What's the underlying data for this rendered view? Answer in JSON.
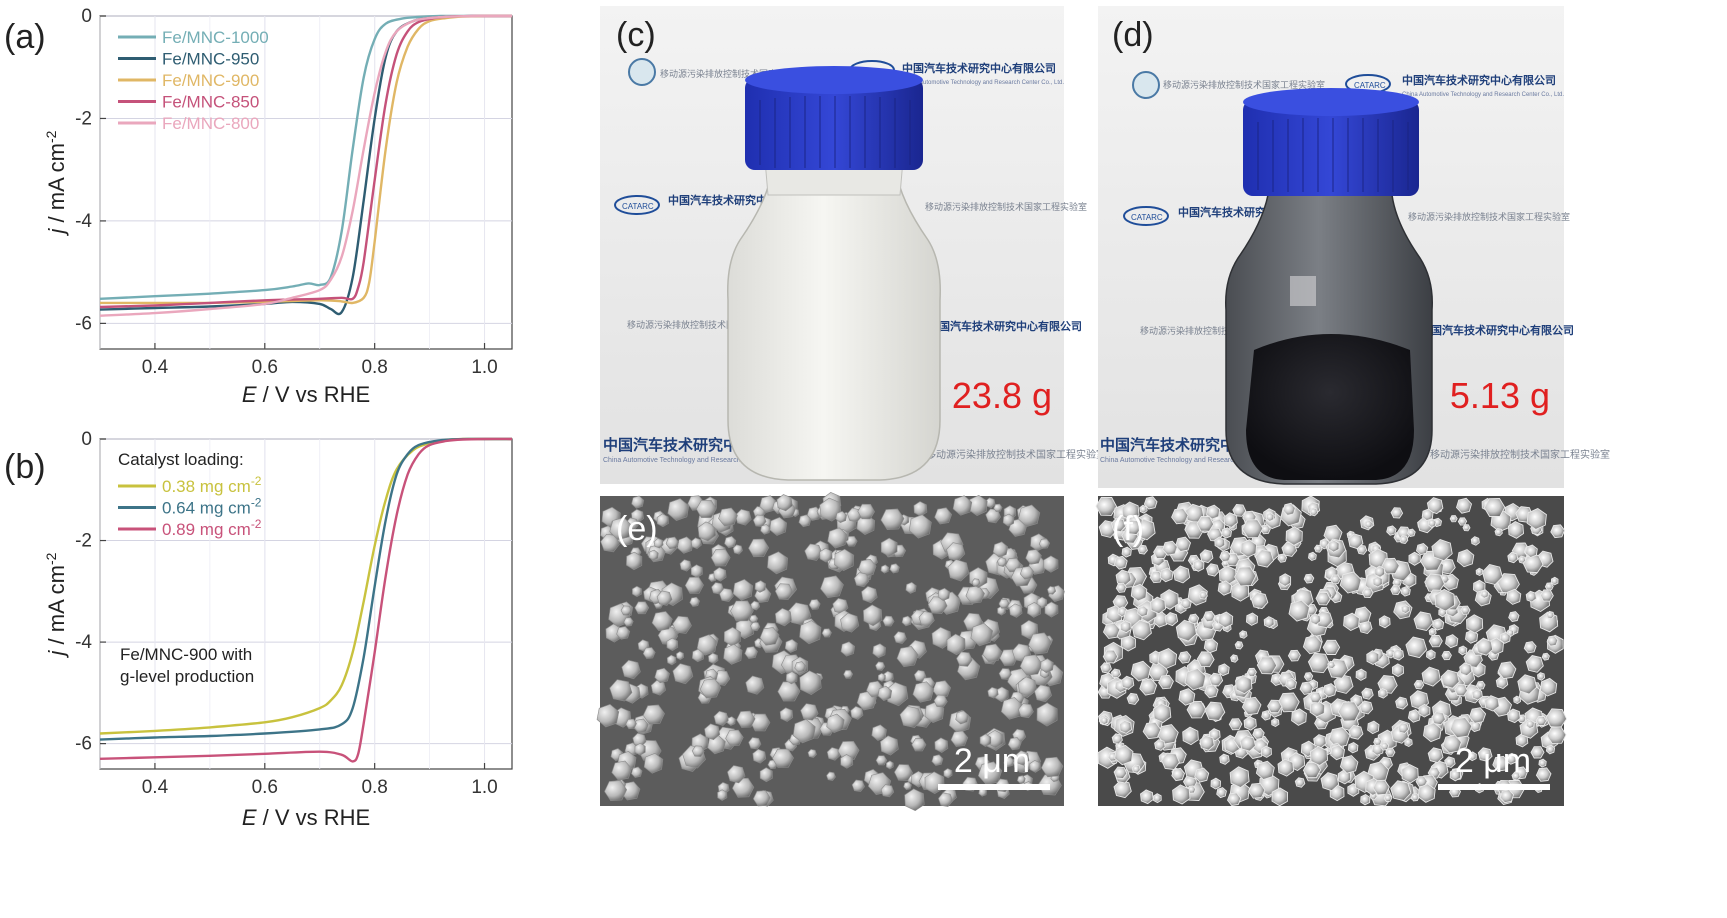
{
  "panels": {
    "a": "(a)",
    "b": "(b)",
    "c": "(c)",
    "d": "(d)",
    "e": "(e)",
    "f": "(f)"
  },
  "photos": {
    "c_mass": "23.8 g",
    "d_mass": "5.13 g",
    "e_scale": "2 μm",
    "f_scale": "2 μm",
    "logo_text": "CATARC",
    "banner_cn": "中国汽车技术研究中心有限公司",
    "banner_en": "China Automotive Technology and Research Center Co., Ltd.",
    "lab_cn": "移动源污染排放控制技术国家工程实验室"
  },
  "chart_data": [
    {
      "type": "line",
      "panel": "a",
      "xlabel_italic": "E",
      "xlabel_rest": " / V vs RHE",
      "ylabel_italic": "j",
      "ylabel_rest": " / mA cm",
      "ylabel_sup": "-2",
      "xlim": [
        0.3,
        1.05
      ],
      "ylim": [
        -6.5,
        0
      ],
      "xticks": [
        0.4,
        0.6,
        0.8,
        1.0
      ],
      "xtick_labels": [
        "0.4",
        "0.6",
        "0.8",
        "1.0"
      ],
      "yticks": [
        0,
        -2,
        -4,
        -6
      ],
      "ytick_labels": [
        "0",
        "-2",
        "-4",
        "-6"
      ],
      "grid": true,
      "legend_position": "top-left",
      "series": [
        {
          "name": "Fe/MNC-1000",
          "color": "#74aeb5",
          "x": [
            0.3,
            0.4,
            0.5,
            0.6,
            0.65,
            0.68,
            0.7,
            0.72,
            0.74,
            0.76,
            0.78,
            0.8,
            0.82,
            0.85,
            0.88,
            0.92,
            0.96,
            1.0,
            1.05
          ],
          "y": [
            -5.52,
            -5.47,
            -5.42,
            -5.35,
            -5.28,
            -5.22,
            -5.25,
            -5.1,
            -4.2,
            -2.6,
            -1.2,
            -0.45,
            -0.15,
            -0.05,
            -0.02,
            0,
            0,
            0,
            0
          ]
        },
        {
          "name": "Fe/MNC-950",
          "color": "#2f5d72",
          "x": [
            0.3,
            0.4,
            0.5,
            0.6,
            0.65,
            0.7,
            0.72,
            0.74,
            0.76,
            0.78,
            0.8,
            0.82,
            0.84,
            0.87,
            0.9,
            0.94,
            0.98,
            1.0,
            1.05
          ],
          "y": [
            -5.73,
            -5.7,
            -5.67,
            -5.62,
            -5.58,
            -5.62,
            -5.72,
            -5.78,
            -5.1,
            -3.6,
            -2.0,
            -0.8,
            -0.3,
            -0.1,
            -0.04,
            -0.01,
            0,
            0,
            0
          ]
        },
        {
          "name": "Fe/MNC-900",
          "color": "#e0b765",
          "x": [
            0.3,
            0.4,
            0.5,
            0.6,
            0.7,
            0.74,
            0.76,
            0.78,
            0.79,
            0.8,
            0.82,
            0.84,
            0.86,
            0.88,
            0.9,
            0.93,
            0.96,
            1.0,
            1.05
          ],
          "y": [
            -5.6,
            -5.6,
            -5.6,
            -5.58,
            -5.55,
            -5.57,
            -5.6,
            -5.5,
            -5.2,
            -4.4,
            -2.6,
            -1.3,
            -0.6,
            -0.25,
            -0.1,
            -0.04,
            -0.01,
            0,
            0
          ]
        },
        {
          "name": "Fe/MNC-850",
          "color": "#c5527a",
          "x": [
            0.3,
            0.4,
            0.5,
            0.6,
            0.7,
            0.74,
            0.76,
            0.77,
            0.78,
            0.8,
            0.82,
            0.84,
            0.86,
            0.88,
            0.91,
            0.94,
            0.98,
            1.0,
            1.05
          ],
          "y": [
            -5.68,
            -5.65,
            -5.6,
            -5.55,
            -5.52,
            -5.5,
            -5.52,
            -5.3,
            -4.8,
            -3.2,
            -1.7,
            -0.75,
            -0.3,
            -0.12,
            -0.04,
            -0.01,
            0,
            0,
            0
          ]
        },
        {
          "name": "Fe/MNC-800",
          "color": "#eaa7bd",
          "x": [
            0.3,
            0.4,
            0.5,
            0.6,
            0.65,
            0.7,
            0.72,
            0.74,
            0.76,
            0.78,
            0.8,
            0.82,
            0.84,
            0.87,
            0.9,
            0.94,
            0.98,
            1.0,
            1.05
          ],
          "y": [
            -5.85,
            -5.8,
            -5.72,
            -5.62,
            -5.5,
            -5.35,
            -5.15,
            -4.7,
            -3.8,
            -2.6,
            -1.5,
            -0.7,
            -0.3,
            -0.1,
            -0.04,
            -0.01,
            0,
            0,
            0
          ]
        }
      ]
    },
    {
      "type": "line",
      "panel": "b",
      "xlabel_italic": "E",
      "xlabel_rest": " / V vs RHE",
      "ylabel_italic": "j",
      "ylabel_rest": " / mA cm",
      "ylabel_sup": "-2",
      "xlim": [
        0.3,
        1.05
      ],
      "ylim": [
        -6.5,
        0
      ],
      "xticks": [
        0.4,
        0.6,
        0.8,
        1.0
      ],
      "xtick_labels": [
        "0.4",
        "0.6",
        "0.8",
        "1.0"
      ],
      "yticks": [
        0,
        -2,
        -4,
        -6
      ],
      "ytick_labels": [
        "0",
        "-2",
        "-4",
        "-6"
      ],
      "grid": true,
      "legend_position": "top-left",
      "legend_title": "Catalyst loading:",
      "annotation_line1": "Fe/MNC-900 with",
      "annotation_line2": "g-level production",
      "series": [
        {
          "name": "0.38 mg cm",
          "name_sup": "-2",
          "color": "#c8c23e",
          "x": [
            0.3,
            0.4,
            0.5,
            0.6,
            0.65,
            0.7,
            0.72,
            0.74,
            0.76,
            0.78,
            0.8,
            0.82,
            0.84,
            0.87,
            0.9,
            0.93,
            0.96,
            1.0,
            1.05
          ],
          "y": [
            -5.8,
            -5.75,
            -5.68,
            -5.58,
            -5.48,
            -5.3,
            -5.15,
            -4.85,
            -4.2,
            -3.2,
            -2.1,
            -1.2,
            -0.6,
            -0.22,
            -0.08,
            -0.02,
            0,
            0,
            0
          ]
        },
        {
          "name": "0.64 mg cm",
          "name_sup": "-2",
          "color": "#3d7488",
          "x": [
            0.3,
            0.4,
            0.5,
            0.6,
            0.7,
            0.74,
            0.76,
            0.78,
            0.8,
            0.82,
            0.84,
            0.86,
            0.88,
            0.91,
            0.94,
            0.97,
            1.0,
            1.05
          ],
          "y": [
            -5.92,
            -5.88,
            -5.85,
            -5.8,
            -5.72,
            -5.62,
            -5.3,
            -4.3,
            -2.9,
            -1.6,
            -0.7,
            -0.3,
            -0.12,
            -0.04,
            -0.01,
            0,
            0,
            0
          ]
        },
        {
          "name": "0.89 mg cm",
          "name_sup": "-2",
          "color": "#c8527a",
          "x": [
            0.3,
            0.4,
            0.5,
            0.6,
            0.7,
            0.74,
            0.76,
            0.77,
            0.78,
            0.8,
            0.82,
            0.84,
            0.86,
            0.88,
            0.9,
            0.93,
            0.96,
            1.0,
            1.05
          ],
          "y": [
            -6.3,
            -6.27,
            -6.24,
            -6.2,
            -6.16,
            -6.22,
            -6.35,
            -6.2,
            -5.6,
            -4.2,
            -2.7,
            -1.5,
            -0.7,
            -0.3,
            -0.12,
            -0.04,
            -0.01,
            0,
            0
          ]
        }
      ]
    }
  ]
}
